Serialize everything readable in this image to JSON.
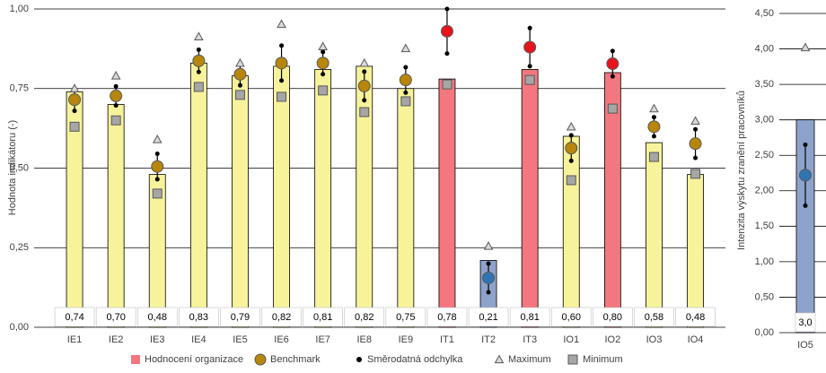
{
  "chart_data": [
    {
      "type": "bar",
      "y_label": "Hodnota indikátoru (-)",
      "categories": [
        "IE1",
        "IE2",
        "IE3",
        "IE4",
        "IE5",
        "IE6",
        "IE7",
        "IE8",
        "IE9",
        "IT1",
        "IT2",
        "IT3",
        "IO1",
        "IO2",
        "IO3",
        "IO4"
      ],
      "ylim": [
        0,
        1
      ],
      "yticks": [
        {
          "value": 0,
          "label": "0,00"
        },
        {
          "value": 0.25,
          "label": "0,25"
        },
        {
          "value": 0.5,
          "label": "0,50"
        },
        {
          "value": 0.75,
          "label": "0,75"
        },
        {
          "value": 1,
          "label": "1,00"
        }
      ],
      "grid": true,
      "series": [
        {
          "name": "Hodnocení organizace",
          "color": "#f4777f",
          "bar_colors": [
            "#f7f39a",
            "#f7f39a",
            "#f7f39a",
            "#f7f39a",
            "#f7f39a",
            "#f7f39a",
            "#f7f39a",
            "#f7f39a",
            "#f7f39a",
            "#f4777f",
            "#8ea3cc",
            "#f4777f",
            "#f7f39a",
            "#f4777f",
            "#f7f39a",
            "#f7f39a"
          ],
          "values": [
            0.74,
            0.7,
            0.48,
            0.83,
            0.79,
            0.82,
            0.81,
            0.82,
            0.75,
            0.78,
            0.21,
            0.81,
            0.6,
            0.8,
            0.58,
            0.48
          ],
          "value_labels": [
            "0,74",
            "0,70",
            "0,48",
            "0,83",
            "0,79",
            "0,82",
            "0,81",
            "0,82",
            "0,75",
            "0,78",
            "0,21",
            "0,81",
            "0,60",
            "0,80",
            "0,58",
            "0,48"
          ]
        },
        {
          "name": "Benchmark",
          "color": "#b8860b",
          "point_colors": [
            "#b8860b",
            "#b8860b",
            "#b8860b",
            "#b8860b",
            "#b8860b",
            "#b8860b",
            "#b8860b",
            "#b8860b",
            "#b8860b",
            "#e8141b",
            "#2e75b6",
            "#e8141b",
            "#b8860b",
            "#e8141b",
            "#b8860b",
            "#b8860b"
          ],
          "values": [
            0.715,
            0.727,
            0.505,
            0.837,
            0.795,
            0.83,
            0.83,
            0.758,
            0.777,
            0.93,
            0.155,
            0.88,
            0.563,
            0.828,
            0.63,
            0.577
          ]
        },
        {
          "name": "Směrodatná odchylka",
          "color": "#000000",
          "values": [
            0.035,
            0.03,
            0.04,
            0.035,
            0.035,
            0.055,
            0.035,
            0.045,
            0.04,
            0.07,
            0.045,
            0.06,
            0.04,
            0.04,
            0.03,
            0.045
          ]
        },
        {
          "name": "Maximum",
          "color": "#bfbfbf",
          "values": [
            0.75,
            0.79,
            0.59,
            0.913,
            0.83,
            0.952,
            0.882,
            0.83,
            0.876,
            null,
            0.255,
            null,
            0.63,
            null,
            0.687,
            0.648
          ]
        },
        {
          "name": "Minimum",
          "color": "#a6a6a6",
          "values": [
            0.63,
            0.65,
            0.42,
            0.755,
            0.73,
            0.724,
            0.744,
            0.676,
            0.71,
            0.763,
            null,
            0.777,
            0.462,
            0.687,
            0.535,
            0.482
          ]
        }
      ]
    },
    {
      "type": "bar",
      "y_label": "Intenzita výskytu zranění pracovníků",
      "categories": [
        "IO5"
      ],
      "ylim": [
        0,
        4.5
      ],
      "yticks": [
        {
          "value": 0,
          "label": "0,00"
        },
        {
          "value": 0.5,
          "label": "0,50"
        },
        {
          "value": 1,
          "label": "1,00"
        },
        {
          "value": 1.5,
          "label": "1,50"
        },
        {
          "value": 2,
          "label": "2,00"
        },
        {
          "value": 2.5,
          "label": "2,50"
        },
        {
          "value": 3,
          "label": "3,00"
        },
        {
          "value": 3.5,
          "label": "3,50"
        },
        {
          "value": 4,
          "label": "4,00"
        },
        {
          "value": 4.5,
          "label": "4,50"
        }
      ],
      "grid": true,
      "series": [
        {
          "bar_colors": [
            "#8ea3cc"
          ],
          "values": [
            3.0
          ],
          "value_labels": [
            "3,0"
          ]
        },
        {
          "point_colors": [
            "#2e75b6"
          ],
          "values": [
            2.22
          ]
        },
        {
          "values": [
            0.43
          ]
        },
        {
          "values": [
            4.02
          ]
        },
        {
          "values": [
            null
          ]
        }
      ]
    }
  ]
}
